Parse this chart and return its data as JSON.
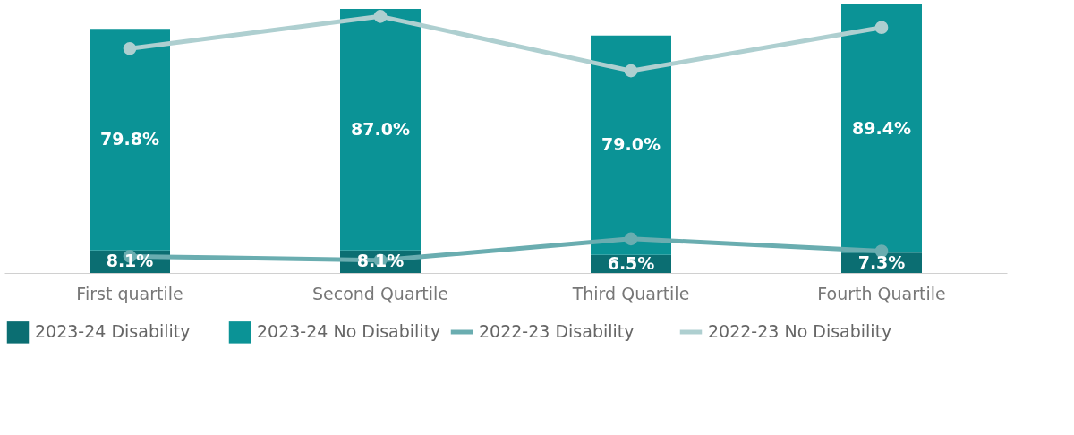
{
  "chart_data": {
    "type": "bar",
    "stacked": true,
    "categories": [
      "First quartile",
      "Second Quartile",
      "Third Quartile",
      "Fourth Quartile"
    ],
    "series": [
      {
        "name": "2023-24 Disability",
        "color": "#0b6e72",
        "values": [
          8.1,
          8.1,
          6.5,
          7.3
        ],
        "value_labels": [
          "8.1%",
          "8.1%",
          "6.5%",
          "7.3%"
        ]
      },
      {
        "name": "2023-24 No Disability",
        "color": "#0b9396",
        "values": [
          79.8,
          87.0,
          79.0,
          89.4
        ],
        "value_labels": [
          "79.8%",
          "87.0%",
          "79.0%",
          "89.4%"
        ]
      },
      {
        "name": "2022-23 Disability",
        "type": "line",
        "color": "#6aadb0",
        "values": [
          6.0,
          4.6,
          12.3,
          7.9
        ]
      },
      {
        "name": "2022-23 No Disability",
        "type": "line",
        "color": "#aecfd0",
        "values": [
          80.8,
          92.4,
          72.8,
          88.4
        ]
      }
    ],
    "tick_labels": "x",
    "grid": false,
    "legend": "bottom",
    "marker": "circle",
    "line_style": "solid"
  }
}
